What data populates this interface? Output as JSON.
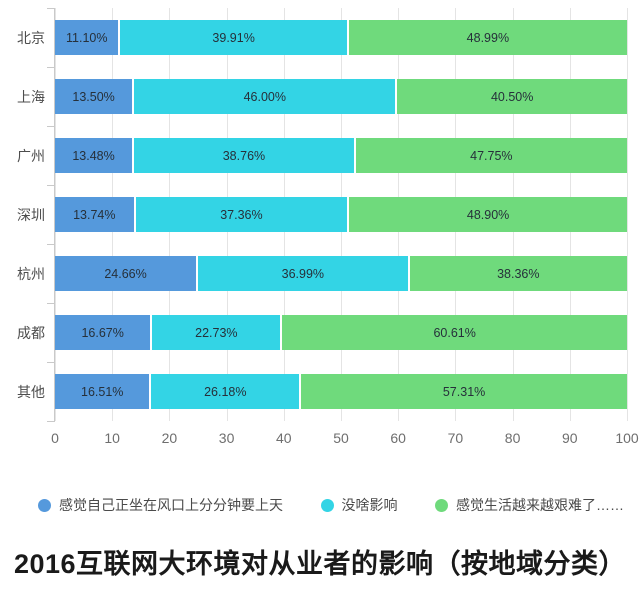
{
  "title": "2016互联网大环境对从业者的影响（按地域分类）",
  "colors": {
    "series_blue": "#5599DC",
    "series_cyan": "#33D4E5",
    "series_green": "#6FDA7C",
    "gridline": "#e4e4e4",
    "axis_line": "#c9c9c9",
    "value_label": "#26303a"
  },
  "chart_data": {
    "type": "bar",
    "orientation": "horizontal",
    "stacked": true,
    "grid": true,
    "legend_position": "bottom",
    "title": "2016互联网大环境对从业者的影响（按地域分类）",
    "xlabel": "",
    "ylabel": "",
    "xlim": [
      0,
      100
    ],
    "x_ticks": [
      0,
      10,
      20,
      30,
      40,
      50,
      60,
      70,
      80,
      90,
      100
    ],
    "categories": [
      "北京",
      "上海",
      "广州",
      "深圳",
      "杭州",
      "成都",
      "其他"
    ],
    "series": [
      {
        "name": "感觉自己正坐在风口上分分钟要上天",
        "color": "#5599DC",
        "values": [
          11.1,
          13.5,
          13.48,
          13.74,
          24.66,
          16.67,
          16.51
        ]
      },
      {
        "name": "没啥影响",
        "color": "#33D4E5",
        "values": [
          39.91,
          46.0,
          38.76,
          37.36,
          36.99,
          22.73,
          26.18
        ]
      },
      {
        "name": "感觉生活越来越艰难了……",
        "color": "#6FDA7C",
        "values": [
          48.99,
          40.5,
          47.75,
          48.9,
          38.36,
          60.61,
          57.31
        ]
      }
    ]
  }
}
